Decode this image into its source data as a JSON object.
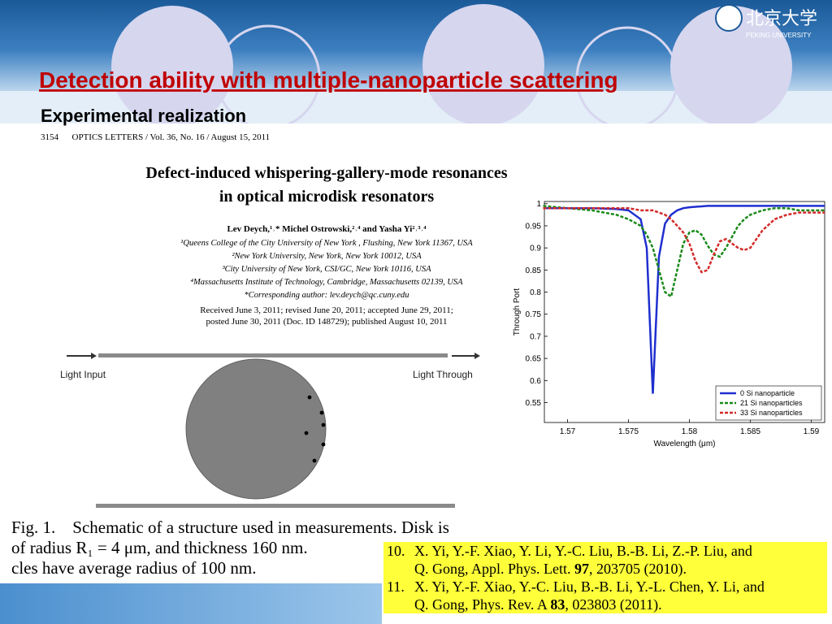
{
  "header": {
    "logo_text": "北京大学",
    "logo_subtext": "PEKING UNIVERSITY"
  },
  "slide": {
    "title": "Detection ability with multiple-nanoparticle scattering",
    "subtitle": "Experimental realization"
  },
  "paper": {
    "journal_line": "3154      OPTICS LETTERS / Vol. 36, No. 16 / August 15, 2011",
    "title_lines": [
      "Defect-induced whispering-gallery-mode resonances",
      "in optical microdisk resonators"
    ],
    "authors": "Lev Deych,¹˒* Michel Ostrowski,²˒⁴ and Yasha Yi²˒³˒⁴",
    "affiliations": [
      "¹Queens College of the City University of New York , Flushing, New York 11367, USA",
      "²New York University, New York, New York 10012, USA",
      "³City University of New York, CSI/GC, New York 10116, USA",
      "⁴Massachusetts Institute of Technology, Cambridge, Massachusetts 02139, USA",
      "*Corresponding author: lev.deych@qc.cuny.edu"
    ],
    "received": [
      "Received June 3, 2011; revised June 20, 2011; accepted June 29, 2011;",
      "posted June 30, 2011 (Doc. ID 148729); published August 10, 2011"
    ]
  },
  "figure": {
    "input_label": "Light Input",
    "output_label": "Light Through",
    "caption_lines": [
      "Fig. 1.    Schematic of a structure used in measurements. Disk is",
      "of radius R₁ = 4 μm, and thickness 160 nm.",
      "cles have average radius of 100 nm."
    ]
  },
  "references": [
    {
      "number": "10.",
      "lines": [
        [
          "X. Yi, Y.-F. Xiao, Y. Li, Y.-C. Liu, B.-B. Li, Z.-P. Liu, and"
        ],
        [
          "Q. Gong, Appl. Phys. Lett. ",
          "97",
          ", 203705 (2010)."
        ]
      ]
    },
    {
      "number": "11.",
      "lines": [
        [
          "X. Yi, Y.-F. Xiao, Y.-C. Liu, B.-B. Li, Y.-L. Chen, Y. Li, and"
        ],
        [
          "Q. Gong, Phys. Rev. A ",
          "83",
          ", 023803 (2011)."
        ]
      ]
    }
  ],
  "chart_data": {
    "type": "line",
    "x_label": "Wavelength (μm)",
    "y_label": "Through Port",
    "x": [
      1.568,
      1.57,
      1.572,
      1.574,
      1.575,
      1.576,
      1.5765,
      1.577,
      1.5775,
      1.578,
      1.5785,
      1.579,
      1.5795,
      1.58,
      1.5805,
      1.581,
      1.5815,
      1.582,
      1.5825,
      1.583,
      1.5835,
      1.584,
      1.5845,
      1.585,
      1.5855,
      1.586,
      1.587,
      1.588,
      1.589,
      1.5911
    ],
    "series": [
      {
        "name": "0 Si nanoparticle",
        "color": "#1f2fcf",
        "style": "solid",
        "values": [
          0.99,
          0.99,
          0.99,
          0.988,
          0.985,
          0.965,
          0.9,
          0.57,
          0.88,
          0.955,
          0.975,
          0.985,
          0.99,
          0.992,
          0.993,
          0.994,
          0.995,
          0.995,
          0.995,
          0.995,
          0.995,
          0.995,
          0.995,
          0.995,
          0.995,
          0.995,
          0.995,
          0.995,
          0.995,
          0.995
        ]
      },
      {
        "name": "21 Si nanoparticles",
        "color": "#1a8a1a",
        "style": "dashed",
        "values": [
          0.995,
          0.99,
          0.985,
          0.975,
          0.965,
          0.95,
          0.93,
          0.9,
          0.85,
          0.8,
          0.79,
          0.85,
          0.91,
          0.935,
          0.94,
          0.93,
          0.905,
          0.885,
          0.88,
          0.9,
          0.925,
          0.95,
          0.965,
          0.975,
          0.98,
          0.985,
          0.99,
          0.99,
          0.985,
          0.985
        ]
      },
      {
        "name": "33 Si nanoparticles",
        "color": "#d42a2a",
        "style": "dashed",
        "values": [
          0.99,
          0.99,
          0.99,
          0.99,
          0.99,
          0.985,
          0.985,
          0.985,
          0.98,
          0.975,
          0.965,
          0.95,
          0.935,
          0.91,
          0.87,
          0.845,
          0.85,
          0.885,
          0.915,
          0.92,
          0.91,
          0.9,
          0.895,
          0.9,
          0.92,
          0.94,
          0.965,
          0.975,
          0.98,
          0.98
        ]
      }
    ],
    "xlim": [
      1.5681,
      1.5911
    ],
    "ylim": [
      0.505,
      1.005
    ],
    "xticks": [
      1.57,
      1.575,
      1.58,
      1.585,
      1.59
    ],
    "yticks": [
      0.55,
      0.6,
      0.65,
      0.7,
      0.75,
      0.8,
      0.85,
      0.9,
      0.95,
      1
    ],
    "legend": "lower right"
  }
}
